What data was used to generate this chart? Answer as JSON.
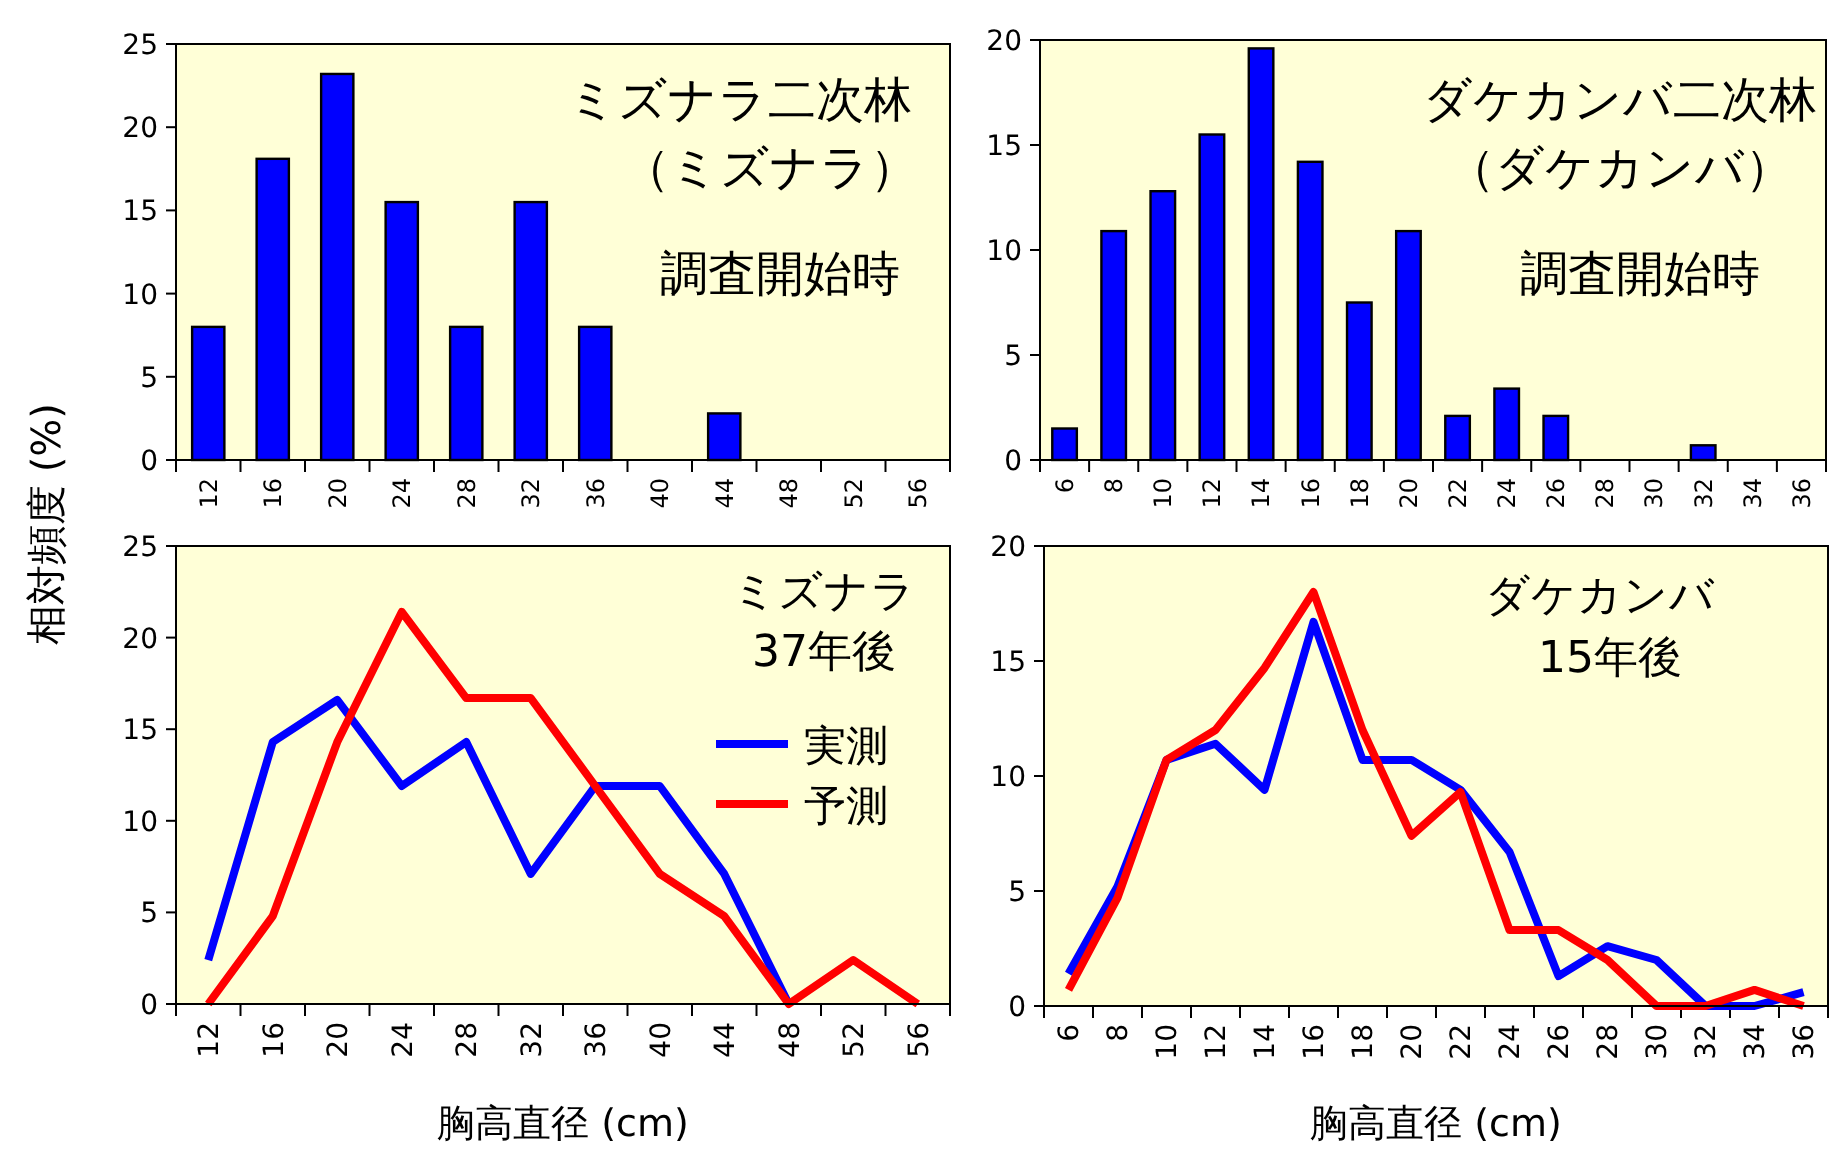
{
  "chart_data": [
    {
      "type": "bar",
      "ylabel": "相対頻度 (%)",
      "annotations": [
        "ミズナラ二次林",
        "（ミズナラ）",
        "調査開始時"
      ],
      "categories": [
        "12",
        "16",
        "20",
        "24",
        "28",
        "32",
        "36",
        "40",
        "44",
        "48",
        "52",
        "56"
      ],
      "values": [
        8,
        18.1,
        23.2,
        15.5,
        8,
        15.5,
        8,
        0,
        2.8,
        0,
        0,
        0
      ],
      "color": "#0000ff",
      "ylim": [
        0,
        25
      ],
      "yticks": [
        0,
        5,
        10,
        15,
        20,
        25
      ],
      "grid": false
    },
    {
      "type": "bar",
      "annotations": [
        "ダケカンバ二次林",
        "（ダケカンバ）",
        "調査開始時"
      ],
      "categories": [
        "6",
        "8",
        "10",
        "12",
        "14",
        "16",
        "18",
        "20",
        "22",
        "24",
        "26",
        "28",
        "30",
        "32",
        "34",
        "36"
      ],
      "values": [
        1.5,
        10.9,
        12.8,
        15.5,
        19.6,
        14.2,
        7.5,
        10.9,
        2.1,
        3.4,
        2.1,
        0,
        0,
        0.7,
        0,
        0
      ],
      "color": "#0000ff",
      "ylim": [
        0,
        20
      ],
      "yticks": [
        0,
        5,
        10,
        15,
        20
      ],
      "grid": false
    },
    {
      "type": "line",
      "xlabel": "胸高直径 (cm)",
      "annotations": [
        "ミズナラ",
        "37年後"
      ],
      "categories": [
        "12",
        "16",
        "20",
        "24",
        "28",
        "32",
        "36",
        "40",
        "44",
        "48",
        "52",
        "56"
      ],
      "series": [
        {
          "name": "実測",
          "color": "#0000ff",
          "values": [
            2.4,
            14.3,
            16.6,
            11.9,
            14.3,
            7.1,
            11.9,
            11.9,
            7.1,
            0,
            null,
            null
          ]
        },
        {
          "name": "予測",
          "color": "#ff0000",
          "values": [
            0,
            4.8,
            14.3,
            21.4,
            16.7,
            16.7,
            11.9,
            7.1,
            4.8,
            0,
            2.4,
            0
          ]
        }
      ],
      "ylim": [
        0,
        25
      ],
      "yticks": [
        0,
        5,
        10,
        15,
        20,
        25
      ],
      "legend": "right",
      "marker": "none",
      "line_style": "solid",
      "grid": false
    },
    {
      "type": "line",
      "xlabel": "胸高直径 (cm)",
      "annotations": [
        "ダケカンバ",
        "15年後"
      ],
      "categories": [
        "6",
        "8",
        "10",
        "12",
        "14",
        "16",
        "18",
        "20",
        "22",
        "24",
        "26",
        "28",
        "30",
        "32",
        "34",
        "36"
      ],
      "series": [
        {
          "color": "#0000ff",
          "values": [
            1.4,
            5.2,
            10.7,
            11.4,
            9.4,
            16.7,
            10.7,
            10.7,
            9.4,
            6.7,
            1.3,
            2.6,
            2.0,
            0,
            0,
            0.6
          ]
        },
        {
          "color": "#ff0000",
          "values": [
            0.7,
            4.7,
            10.7,
            12.0,
            14.7,
            18.0,
            12.0,
            7.4,
            9.3,
            3.3,
            3.3,
            2.0,
            0,
            0,
            0.7,
            0
          ]
        }
      ],
      "ylim": [
        0,
        20
      ],
      "yticks": [
        0,
        5,
        10,
        15,
        20
      ],
      "marker": "none",
      "line_style": "solid",
      "grid": false
    }
  ]
}
